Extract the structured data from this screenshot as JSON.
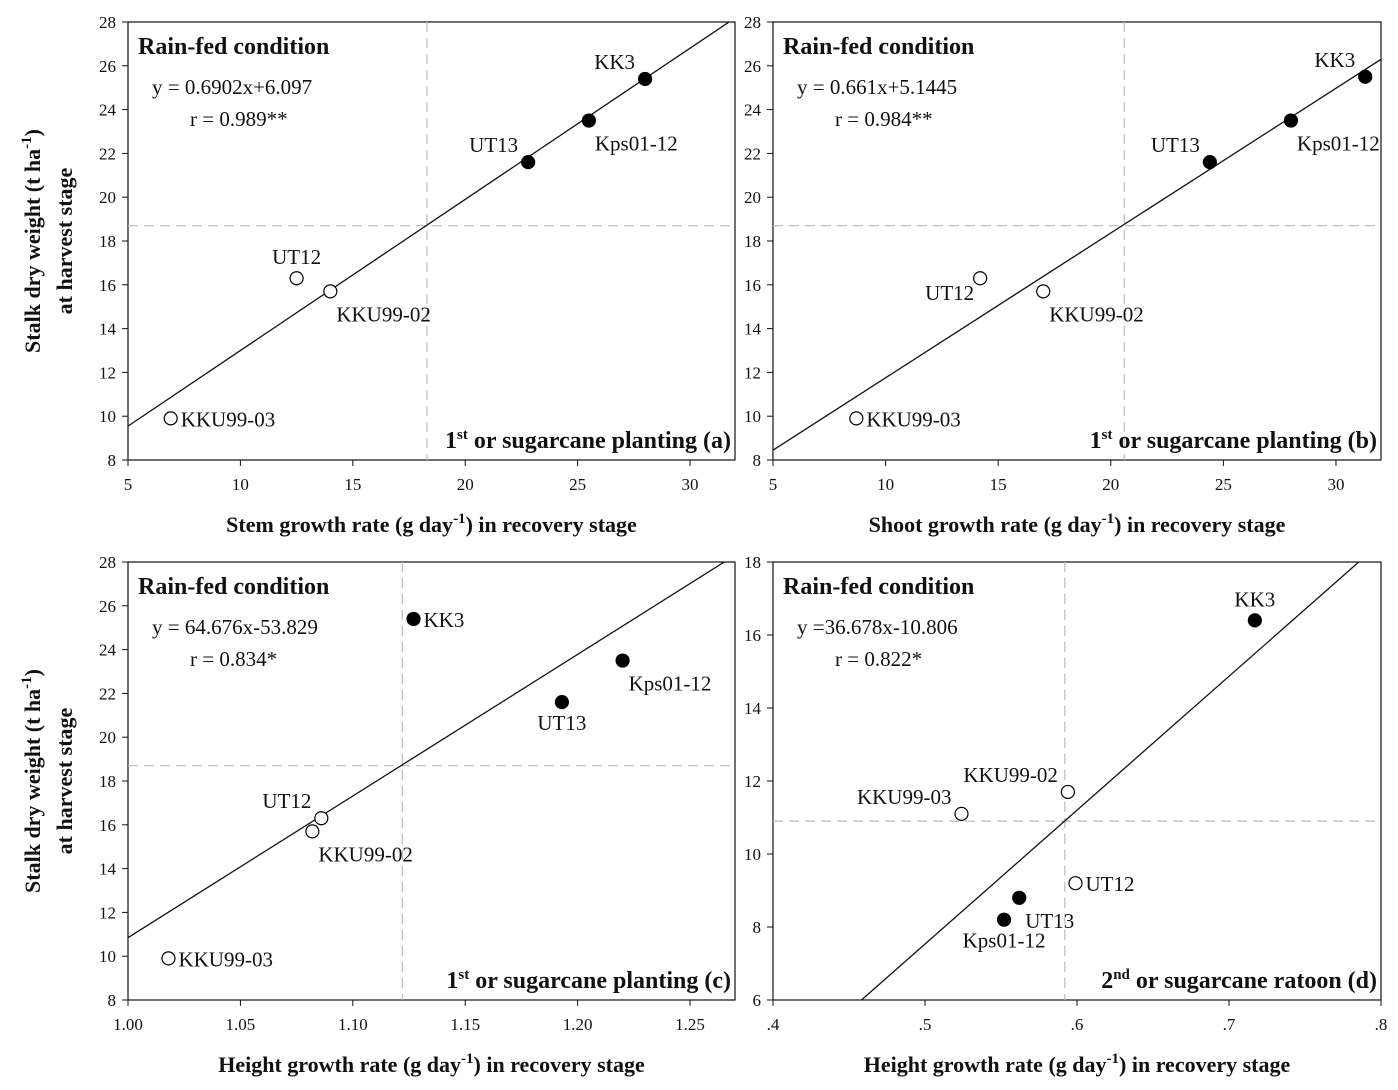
{
  "chart_data": [
    {
      "id": "a",
      "type": "scatter",
      "condition_label": "Rain-fed condition",
      "equation": "y = 0.6902x+6.097",
      "correlation": "r = 0.989**",
      "xlabel_pre": "Stem growth rate (g day",
      "xlabel_sup": "-1",
      "xlabel_post": ") in recovery stage",
      "ylabel_line1_pre": "Stalk dry weight (t ha",
      "ylabel_line1_sup": "-1",
      "ylabel_line1_post": ")",
      "ylabel_line2": "at harvest stage",
      "corner_pre": "1",
      "corner_sup": "st",
      "corner_post": " or sugarcane planting (a)",
      "xlim": [
        5,
        32
      ],
      "ylim": [
        8,
        28
      ],
      "xticks": [
        5,
        10,
        15,
        20,
        25,
        30
      ],
      "xtick_labels": [
        "5",
        "10",
        "15",
        "20",
        "25",
        "30"
      ],
      "yticks": [
        8,
        10,
        12,
        14,
        16,
        18,
        20,
        22,
        24,
        26,
        28
      ],
      "ytick_labels": [
        "8",
        "10",
        "12",
        "14",
        "16",
        "18",
        "20",
        "22",
        "24",
        "26",
        "28"
      ],
      "fit": {
        "slope": 0.6902,
        "intercept": 6.097
      },
      "mean_x": 18.3,
      "mean_y": 18.7,
      "points": [
        {
          "name": "KK3",
          "x": 28.0,
          "y": 25.4,
          "filled": true,
          "label_pos": "above-left"
        },
        {
          "name": "Kps01-12",
          "x": 25.5,
          "y": 23.5,
          "filled": true,
          "label_pos": "below-right"
        },
        {
          "name": "UT13",
          "x": 22.8,
          "y": 21.6,
          "filled": true,
          "label_pos": "above-left"
        },
        {
          "name": "UT12",
          "x": 12.5,
          "y": 16.3,
          "filled": false,
          "label_pos": "above"
        },
        {
          "name": "KKU99-02",
          "x": 14.0,
          "y": 15.7,
          "filled": false,
          "label_pos": "below-right"
        },
        {
          "name": "KKU99-03",
          "x": 6.9,
          "y": 9.9,
          "filled": false,
          "label_pos": "right"
        }
      ]
    },
    {
      "id": "b",
      "type": "scatter",
      "condition_label": "Rain-fed condition",
      "equation": "y = 0.661x+5.1445",
      "correlation": "r = 0.984**",
      "xlabel_pre": "Shoot growth rate (g day",
      "xlabel_sup": "-1",
      "xlabel_post": ") in recovery stage",
      "ylabel_line1_pre": "",
      "ylabel_line1_sup": "",
      "ylabel_line1_post": "",
      "ylabel_line2": "",
      "corner_pre": "1",
      "corner_sup": "st",
      "corner_post": " or sugarcane planting (b)",
      "xlim": [
        5,
        32
      ],
      "ylim": [
        8,
        28
      ],
      "xticks": [
        5,
        10,
        15,
        20,
        25,
        30
      ],
      "xtick_labels": [
        "5",
        "10",
        "15",
        "20",
        "25",
        "30"
      ],
      "yticks": [
        8,
        10,
        12,
        14,
        16,
        18,
        20,
        22,
        24,
        26,
        28
      ],
      "ytick_labels": [
        "8",
        "10",
        "12",
        "14",
        "16",
        "18",
        "20",
        "22",
        "24",
        "26",
        "28"
      ],
      "fit": {
        "slope": 0.661,
        "intercept": 5.1445
      },
      "mean_x": 20.6,
      "mean_y": 18.7,
      "points": [
        {
          "name": "KK3",
          "x": 31.3,
          "y": 25.5,
          "filled": true,
          "label_pos": "above-left"
        },
        {
          "name": "Kps01-12",
          "x": 28.0,
          "y": 23.5,
          "filled": true,
          "label_pos": "below-right"
        },
        {
          "name": "UT13",
          "x": 24.4,
          "y": 21.6,
          "filled": true,
          "label_pos": "above-left"
        },
        {
          "name": "UT12",
          "x": 14.2,
          "y": 16.3,
          "filled": false,
          "label_pos": "below-left"
        },
        {
          "name": "KKU99-02",
          "x": 17.0,
          "y": 15.7,
          "filled": false,
          "label_pos": "below-right"
        },
        {
          "name": "KKU99-03",
          "x": 8.7,
          "y": 9.9,
          "filled": false,
          "label_pos": "right"
        }
      ]
    },
    {
      "id": "c",
      "type": "scatter",
      "condition_label": "Rain-fed condition",
      "equation": "y = 64.676x-53.829",
      "correlation": "r = 0.834*",
      "xlabel_pre": "Height growth rate (g day",
      "xlabel_sup": "-1",
      "xlabel_post": ") in recovery stage",
      "ylabel_line1_pre": "Stalk dry weight (t ha",
      "ylabel_line1_sup": "-1",
      "ylabel_line1_post": ")",
      "ylabel_line2": "at harvest stage",
      "corner_pre": "1",
      "corner_sup": "st",
      "corner_post": " or sugarcane planting (c)",
      "xlim": [
        1.0,
        1.27
      ],
      "ylim": [
        8,
        28
      ],
      "xticks": [
        1.0,
        1.05,
        1.1,
        1.15,
        1.2,
        1.25
      ],
      "xtick_labels": [
        "1.00",
        "1.05",
        "1.10",
        "1.15",
        "1.20",
        "1.25"
      ],
      "yticks": [
        8,
        10,
        12,
        14,
        16,
        18,
        20,
        22,
        24,
        26,
        28
      ],
      "ytick_labels": [
        "8",
        "10",
        "12",
        "14",
        "16",
        "18",
        "20",
        "22",
        "24",
        "26",
        "28"
      ],
      "fit": {
        "slope": 64.676,
        "intercept": -53.829
      },
      "mean_x": 1.122,
      "mean_y": 18.7,
      "points": [
        {
          "name": "KK3",
          "x": 1.127,
          "y": 25.4,
          "filled": true,
          "label_pos": "right"
        },
        {
          "name": "Kps01-12",
          "x": 1.22,
          "y": 23.5,
          "filled": true,
          "label_pos": "below-right"
        },
        {
          "name": "UT13",
          "x": 1.193,
          "y": 21.6,
          "filled": true,
          "label_pos": "below"
        },
        {
          "name": "UT12",
          "x": 1.086,
          "y": 16.3,
          "filled": false,
          "label_pos": "above-left"
        },
        {
          "name": "KKU99-02",
          "x": 1.082,
          "y": 15.7,
          "filled": false,
          "label_pos": "below-right"
        },
        {
          "name": "KKU99-03",
          "x": 1.018,
          "y": 9.9,
          "filled": false,
          "label_pos": "right"
        }
      ]
    },
    {
      "id": "d",
      "type": "scatter",
      "condition_label": "Rain-fed condition",
      "equation": "y =36.678x-10.806",
      "correlation": "r = 0.822*",
      "xlabel_pre": "Height growth rate (g day",
      "xlabel_sup": "-1",
      "xlabel_post": ") in recovery stage",
      "ylabel_line1_pre": "",
      "ylabel_line1_sup": "",
      "ylabel_line1_post": "",
      "ylabel_line2": "",
      "corner_pre": "2",
      "corner_sup": "nd",
      "corner_post": " or sugarcane ratoon (d)",
      "xlim": [
        0.4,
        0.8
      ],
      "ylim": [
        6,
        18
      ],
      "xticks": [
        0.4,
        0.5,
        0.6,
        0.7,
        0.8
      ],
      "xtick_labels": [
        ".4",
        ".5",
        ".6",
        ".7",
        ".8"
      ],
      "yticks": [
        6,
        8,
        10,
        12,
        14,
        16,
        18
      ],
      "ytick_labels": [
        "6",
        "8",
        "10",
        "12",
        "14",
        "16",
        "18"
      ],
      "fit": {
        "slope": 36.678,
        "intercept": -10.806
      },
      "mean_x": 0.592,
      "mean_y": 10.9,
      "points": [
        {
          "name": "KK3",
          "x": 0.717,
          "y": 16.4,
          "filled": true,
          "label_pos": "above"
        },
        {
          "name": "KKU99-02",
          "x": 0.594,
          "y": 11.7,
          "filled": false,
          "label_pos": "above-left"
        },
        {
          "name": "KKU99-03",
          "x": 0.524,
          "y": 11.1,
          "filled": false,
          "label_pos": "above-left"
        },
        {
          "name": "UT12",
          "x": 0.599,
          "y": 9.2,
          "filled": false,
          "label_pos": "right"
        },
        {
          "name": "UT13",
          "x": 0.562,
          "y": 8.8,
          "filled": true,
          "label_pos": "below-right"
        },
        {
          "name": "Kps01-12",
          "x": 0.552,
          "y": 8.2,
          "filled": true,
          "label_pos": "below"
        }
      ]
    }
  ]
}
